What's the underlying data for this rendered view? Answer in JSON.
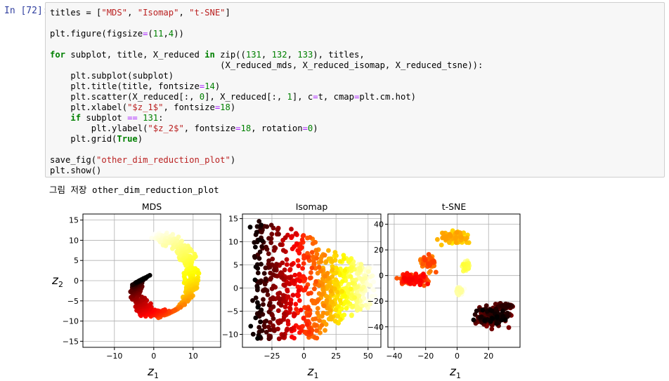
{
  "cell": {
    "prompt": "In [72]:",
    "code_lines": [
      [
        {
          "t": "titles = ["
        },
        {
          "t": "\"MDS\"",
          "c": "str"
        },
        {
          "t": ", "
        },
        {
          "t": "\"Isomap\"",
          "c": "str"
        },
        {
          "t": ", "
        },
        {
          "t": "\"t-SNE\"",
          "c": "str"
        },
        {
          "t": "]"
        }
      ],
      [],
      [
        {
          "t": "plt.figure(figsize"
        },
        {
          "t": "=",
          "c": "op"
        },
        {
          "t": "("
        },
        {
          "t": "11",
          "c": "num"
        },
        {
          "t": ","
        },
        {
          "t": "4",
          "c": "num"
        },
        {
          "t": "))"
        }
      ],
      [],
      [
        {
          "t": "for",
          "c": "kw"
        },
        {
          "t": " subplot, title, X_reduced "
        },
        {
          "t": "in",
          "c": "kw"
        },
        {
          "t": " zip(("
        },
        {
          "t": "131",
          "c": "num"
        },
        {
          "t": ", "
        },
        {
          "t": "132",
          "c": "num"
        },
        {
          "t": ", "
        },
        {
          "t": "133",
          "c": "num"
        },
        {
          "t": "), titles,"
        }
      ],
      [
        {
          "t": "                                 (X_reduced_mds, X_reduced_isomap, X_reduced_tsne)):"
        }
      ],
      [
        {
          "t": "    plt.subplot(subplot)"
        }
      ],
      [
        {
          "t": "    plt.title(title, fontsize"
        },
        {
          "t": "=",
          "c": "op"
        },
        {
          "t": "14",
          "c": "num"
        },
        {
          "t": ")"
        }
      ],
      [
        {
          "t": "    plt.scatter(X_reduced[:, "
        },
        {
          "t": "0",
          "c": "num"
        },
        {
          "t": "], X_reduced[:, "
        },
        {
          "t": "1",
          "c": "num"
        },
        {
          "t": "], c"
        },
        {
          "t": "=",
          "c": "op"
        },
        {
          "t": "t, cmap"
        },
        {
          "t": "=",
          "c": "op"
        },
        {
          "t": "plt.cm.hot)"
        }
      ],
      [
        {
          "t": "    plt.xlabel("
        },
        {
          "t": "\"$z_1$\"",
          "c": "str"
        },
        {
          "t": ", fontsize"
        },
        {
          "t": "=",
          "c": "op"
        },
        {
          "t": "18",
          "c": "num"
        },
        {
          "t": ")"
        }
      ],
      [
        {
          "t": "    "
        },
        {
          "t": "if",
          "c": "kw"
        },
        {
          "t": " subplot "
        },
        {
          "t": "==",
          "c": "op"
        },
        {
          "t": " "
        },
        {
          "t": "131",
          "c": "num"
        },
        {
          "t": ":"
        }
      ],
      [
        {
          "t": "        plt.ylabel("
        },
        {
          "t": "\"$z_2$\"",
          "c": "str"
        },
        {
          "t": ", fontsize"
        },
        {
          "t": "=",
          "c": "op"
        },
        {
          "t": "18",
          "c": "num"
        },
        {
          "t": ", rotation"
        },
        {
          "t": "=",
          "c": "op"
        },
        {
          "t": "0",
          "c": "num"
        },
        {
          "t": ")"
        }
      ],
      [
        {
          "t": "    plt.grid("
        },
        {
          "t": "True",
          "c": "kw"
        },
        {
          "t": ")"
        }
      ],
      [],
      [
        {
          "t": "save_fig("
        },
        {
          "t": "\"other_dim_reduction_plot\"",
          "c": "str"
        },
        {
          "t": ")"
        }
      ],
      [
        {
          "t": "plt.show()"
        }
      ]
    ]
  },
  "output_text": "그림 저장 other_dim_reduction_plot",
  "chart_data": [
    {
      "type": "scatter",
      "title": "MDS",
      "xlabel": "z1",
      "ylabel": "z2",
      "xlim": [
        -18,
        17
      ],
      "ylim": [
        -16.5,
        16.5
      ],
      "xticks": [
        -10,
        0,
        10
      ],
      "yticks": [
        -15,
        -10,
        -5,
        0,
        5,
        10,
        15
      ],
      "grid": true,
      "colormap": "hot",
      "shape": "spiral"
    },
    {
      "type": "scatter",
      "title": "Isomap",
      "xlabel": "z1",
      "ylabel": "",
      "xlim": [
        -48,
        60
      ],
      "ylim": [
        -12.8,
        16
      ],
      "xticks": [
        -25,
        0,
        25,
        50
      ],
      "yticks": [
        -10,
        -5,
        0,
        5,
        10,
        15
      ],
      "grid": true,
      "colormap": "hot",
      "shape": "gradient-sheet"
    },
    {
      "type": "scatter",
      "title": "t-SNE",
      "xlabel": "z1",
      "ylabel": "",
      "xlim": [
        -44,
        40
      ],
      "ylim": [
        -56,
        48
      ],
      "xticks": [
        -40,
        -20,
        0,
        20
      ],
      "yticks": [
        -40,
        -20,
        0,
        20,
        40
      ],
      "grid": true,
      "colormap": "hot",
      "shape": "clusters"
    }
  ]
}
